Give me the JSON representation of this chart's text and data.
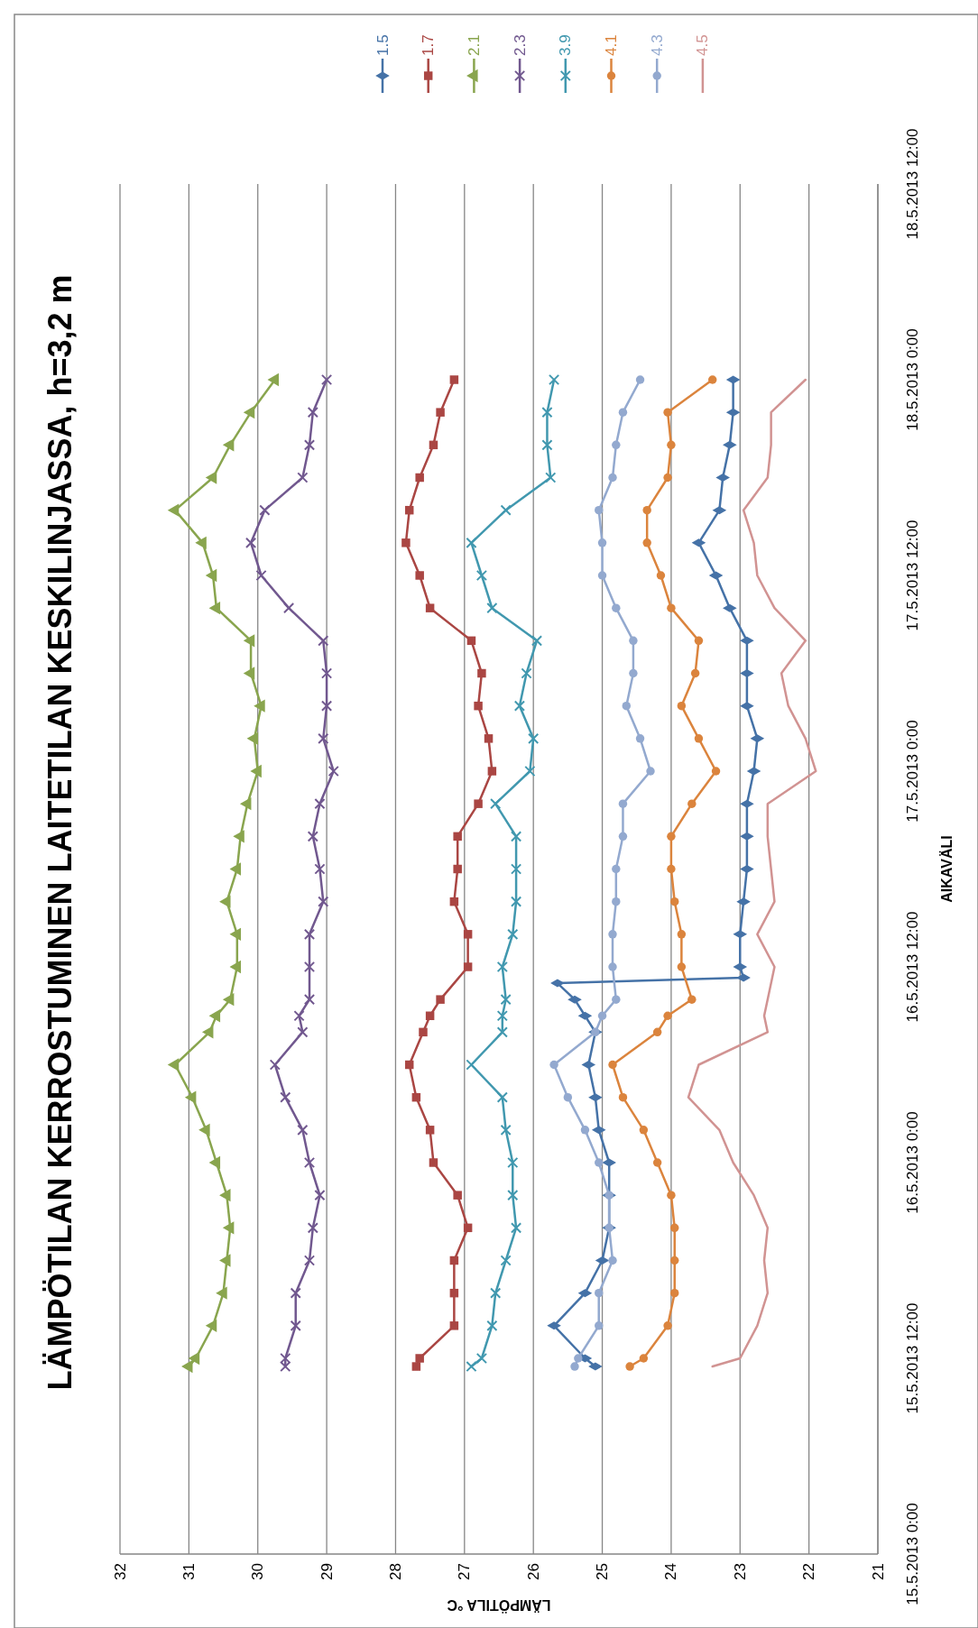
{
  "chart_data": {
    "type": "line",
    "orientation": "horizontal",
    "title": "LÄMPÖTILAN KERROSTUMINEN LAITETILAN KESKILINJASSA, h=3,2 m",
    "xlabel": "LÄMPÖTILA °C",
    "ylabel": "AIKAVÄLI",
    "x": [
      "2013-05-15T11:30",
      "2013-05-15T12:00",
      "2013-05-15T14:00",
      "2013-05-15T16:00",
      "2013-05-15T18:00",
      "2013-05-15T20:00",
      "2013-05-15T22:00",
      "2013-05-16T00:00",
      "2013-05-16T02:00",
      "2013-05-16T04:00",
      "2013-05-16T06:00",
      "2013-05-16T08:00",
      "2013-05-16T09:00",
      "2013-05-16T10:00",
      "2013-05-16T12:00",
      "2013-05-16T14:00",
      "2013-05-16T16:00",
      "2013-05-16T18:00",
      "2013-05-16T20:00",
      "2013-05-16T22:00",
      "2013-05-17T00:00",
      "2013-05-17T02:00",
      "2013-05-17T04:00",
      "2013-05-17T06:00",
      "2013-05-17T08:00",
      "2013-05-17T10:00",
      "2013-05-17T12:00",
      "2013-05-17T14:00",
      "2013-05-17T16:00",
      "2013-05-17T18:00",
      "2013-05-17T20:00",
      "2013-05-17T22:00",
      "2013-05-18T00:00"
    ],
    "series": [
      {
        "name": "1.5",
        "color": "#4572a7",
        "marker": "diamond",
        "x": [
          "2013-05-15T11:30",
          "2013-05-15T12:00",
          "2013-05-15T14:00",
          "2013-05-15T16:00",
          "2013-05-15T18:00",
          "2013-05-15T20:00",
          "2013-05-15T22:00",
          "2013-05-16T00:00",
          "2013-05-16T02:00",
          "2013-05-16T04:00",
          "2013-05-16T06:00",
          "2013-05-16T08:00",
          "2013-05-16T09:00",
          "2013-05-16T10:00",
          "2013-05-16T11:00",
          "2013-05-16T11:20",
          "2013-05-16T12:00",
          "2013-05-16T14:00",
          "2013-05-16T16:00",
          "2013-05-16T18:00",
          "2013-05-16T20:00",
          "2013-05-16T22:00",
          "2013-05-17T00:00",
          "2013-05-17T02:00",
          "2013-05-17T04:00",
          "2013-05-17T06:00",
          "2013-05-17T08:00",
          "2013-05-17T10:00",
          "2013-05-17T12:00",
          "2013-05-17T14:00",
          "2013-05-17T16:00",
          "2013-05-17T18:00",
          "2013-05-17T20:00",
          "2013-05-17T22:00",
          "2013-05-18T00:00"
        ],
        "values": [
          25.1,
          25.25,
          25.7,
          25.25,
          25.0,
          24.9,
          24.9,
          24.9,
          25.05,
          25.1,
          25.2,
          25.1,
          25.25,
          25.4,
          25.65,
          22.95,
          23.0,
          23.0,
          22.95,
          22.9,
          22.9,
          22.9,
          22.8,
          22.75,
          22.9,
          22.9,
          22.9,
          23.15,
          23.35,
          23.6,
          23.3,
          23.25,
          23.15,
          23.1,
          23.1
        ]
      },
      {
        "name": "1.7",
        "color": "#aa4643",
        "marker": "square",
        "values": [
          27.7,
          27.65,
          27.15,
          27.15,
          27.15,
          26.95,
          27.1,
          27.45,
          27.5,
          27.7,
          27.8,
          27.6,
          27.5,
          27.35,
          26.95,
          26.95,
          27.15,
          27.1,
          27.1,
          26.8,
          26.6,
          26.65,
          26.8,
          26.75,
          26.9,
          27.5,
          27.65,
          27.85,
          27.8,
          27.65,
          27.45,
          27.35,
          27.15
        ]
      },
      {
        "name": "2.1",
        "color": "#89a54e",
        "marker": "triangle",
        "values": [
          31.0,
          30.9,
          30.65,
          30.5,
          30.45,
          30.4,
          30.45,
          30.6,
          30.75,
          30.95,
          31.2,
          30.7,
          30.6,
          30.4,
          30.3,
          30.3,
          30.45,
          30.3,
          30.25,
          30.15,
          30.0,
          30.05,
          29.95,
          30.1,
          30.1,
          30.6,
          30.65,
          30.8,
          31.2,
          30.65,
          30.4,
          30.1,
          29.75
        ]
      },
      {
        "name": "2.3",
        "color": "#71588f",
        "marker": "cross",
        "values": [
          29.6,
          29.6,
          29.45,
          29.45,
          29.25,
          29.2,
          29.1,
          29.25,
          29.35,
          29.6,
          29.75,
          29.35,
          29.4,
          29.25,
          29.25,
          29.25,
          29.05,
          29.1,
          29.2,
          29.1,
          28.9,
          29.05,
          29.0,
          29.0,
          29.05,
          29.55,
          29.95,
          30.1,
          29.9,
          29.35,
          29.25,
          29.2,
          29.0
        ]
      },
      {
        "name": "3.9",
        "color": "#4198af",
        "marker": "cross",
        "values": [
          26.9,
          26.75,
          26.6,
          26.55,
          26.4,
          26.25,
          26.3,
          26.3,
          26.4,
          26.45,
          26.9,
          26.45,
          26.45,
          26.4,
          26.45,
          26.3,
          26.25,
          26.25,
          26.25,
          26.55,
          26.05,
          26.0,
          26.2,
          26.1,
          25.95,
          26.6,
          26.75,
          26.9,
          26.4,
          25.75,
          25.8,
          25.8,
          25.7
        ]
      },
      {
        "name": "4.1",
        "color": "#db843d",
        "marker": "circle",
        "values": [
          24.6,
          24.4,
          24.05,
          23.95,
          23.95,
          23.95,
          24.0,
          24.2,
          24.4,
          24.7,
          24.85,
          24.2,
          24.05,
          23.7,
          23.85,
          23.85,
          23.95,
          24.0,
          24.0,
          23.7,
          23.35,
          23.6,
          23.85,
          23.65,
          23.6,
          24.0,
          24.15,
          24.35,
          24.35,
          24.05,
          24.0,
          24.05,
          23.4
        ]
      },
      {
        "name": "4.3",
        "color": "#93a9cf",
        "marker": "circle",
        "values": [
          25.4,
          25.35,
          25.05,
          25.05,
          24.85,
          24.9,
          24.9,
          25.05,
          25.25,
          25.5,
          25.7,
          25.1,
          25.0,
          24.8,
          24.85,
          24.85,
          24.8,
          24.8,
          24.7,
          24.7,
          24.3,
          24.45,
          24.65,
          24.55,
          24.55,
          24.8,
          25.0,
          25.0,
          25.05,
          24.85,
          24.8,
          24.7,
          24.45
        ]
      },
      {
        "name": "4.5",
        "color": "#d19392",
        "marker": "none",
        "values": [
          23.4,
          23.0,
          22.75,
          22.6,
          22.65,
          22.6,
          22.8,
          23.1,
          23.3,
          23.75,
          23.6,
          22.6,
          22.65,
          22.6,
          22.5,
          22.75,
          22.5,
          22.55,
          22.6,
          22.6,
          21.9,
          22.05,
          22.3,
          22.4,
          22.05,
          22.5,
          22.75,
          22.8,
          22.95,
          22.6,
          22.55,
          22.55,
          22.05
        ]
      }
    ],
    "xlim": [
      32,
      21
    ],
    "xticks": [
      32,
      31,
      30,
      29,
      28,
      27,
      26,
      25,
      24,
      23,
      22,
      21
    ],
    "ylim": [
      "2013-05-15T00:00",
      "2013-05-18T12:00"
    ],
    "yticks": [
      {
        "value": "2013-05-15T00:00",
        "label": "15.5.2013 0:00"
      },
      {
        "value": "2013-05-15T12:00",
        "label": "15.5.2013 12:00"
      },
      {
        "value": "2013-05-16T00:00",
        "label": "16.5.2013 0:00"
      },
      {
        "value": "2013-05-16T12:00",
        "label": "16.5.2013 12:00"
      },
      {
        "value": "2013-05-17T00:00",
        "label": "17.5.2013 0:00"
      },
      {
        "value": "2013-05-17T12:00",
        "label": "17.5.2013 12:00"
      },
      {
        "value": "2013-05-18T00:00",
        "label": "18.5.2013 0:00"
      },
      {
        "value": "2013-05-18T12:00",
        "label": "18.5.2013 12:00"
      }
    ],
    "grid": "x",
    "legend": "top",
    "line_style": "solid"
  }
}
